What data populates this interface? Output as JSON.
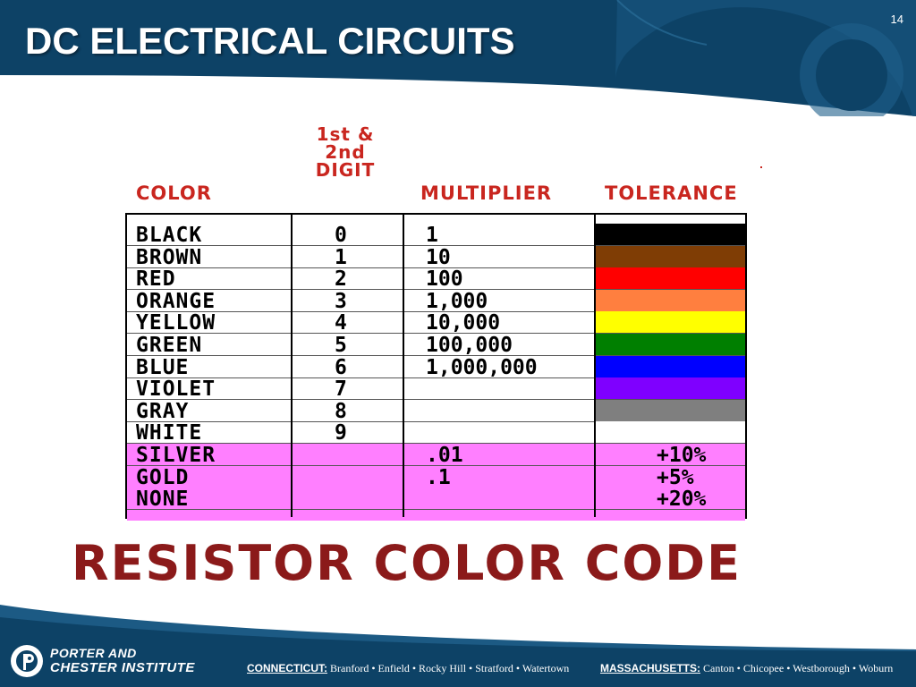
{
  "header": {
    "title": "DC ELECTRICAL CIRCUITS",
    "page_number": "14"
  },
  "table": {
    "headers": {
      "color": "COLOR",
      "digit": "1st & 2nd DIGIT",
      "multiplier": "MULTIPLIER",
      "tolerance": "TOLERANCE"
    },
    "rows": [
      {
        "name": "BLACK",
        "digit": "0",
        "multiplier": "1",
        "tolerance": "",
        "swatch": "#000000"
      },
      {
        "name": "BROWN",
        "digit": "1",
        "multiplier": "10",
        "tolerance": "",
        "swatch": "#7f3d05"
      },
      {
        "name": "RED",
        "digit": "2",
        "multiplier": "100",
        "tolerance": "",
        "swatch": "#ff0000"
      },
      {
        "name": "ORANGE",
        "digit": "3",
        "multiplier": "1,000",
        "tolerance": "",
        "swatch": "#ff7f3f"
      },
      {
        "name": "YELLOW",
        "digit": "4",
        "multiplier": "10,000",
        "tolerance": "",
        "swatch": "#ffff00"
      },
      {
        "name": "GREEN",
        "digit": "5",
        "multiplier": "100,000",
        "tolerance": "",
        "swatch": "#007f00"
      },
      {
        "name": "BLUE",
        "digit": "6",
        "multiplier": "1,000,000",
        "tolerance": "",
        "swatch": "#0000ff"
      },
      {
        "name": "VIOLET",
        "digit": "7",
        "multiplier": "",
        "tolerance": "",
        "swatch": "#7f00ff"
      },
      {
        "name": "GRAY",
        "digit": "8",
        "multiplier": "",
        "tolerance": "",
        "swatch": "#7f7f7f"
      },
      {
        "name": "WHITE",
        "digit": "9",
        "multiplier": "",
        "tolerance": "",
        "swatch": "#ffffff"
      },
      {
        "name": "SILVER",
        "digit": "",
        "multiplier": ".01",
        "tolerance": "+10%",
        "swatch": ""
      },
      {
        "name": "GOLD",
        "digit": "",
        "multiplier": ".1",
        "tolerance": "+5%",
        "swatch": ""
      },
      {
        "name": "NONE",
        "digit": "",
        "multiplier": "",
        "tolerance": "+20%",
        "swatch": ""
      }
    ]
  },
  "subtitle": "RESISTOR COLOR CODE",
  "footer": {
    "brand_line1": "PORTER AND",
    "brand_line2": "CHESTER INSTITUTE",
    "ct_label": "CONNECTICUT:",
    "ct_locations": "Branford • Enfield • Rocky Hill • Stratford • Watertown",
    "ma_label": "MASSACHUSETTS:",
    "ma_locations": "Canton • Chicopee • Westborough • Woburn"
  },
  "colors": {
    "header_bg": "#0d4266",
    "footer_bg": "#0d4266",
    "heading_red": "#c9261f",
    "title_dark_red": "#8b1a1a",
    "pink_rows": "#ff7fff"
  }
}
